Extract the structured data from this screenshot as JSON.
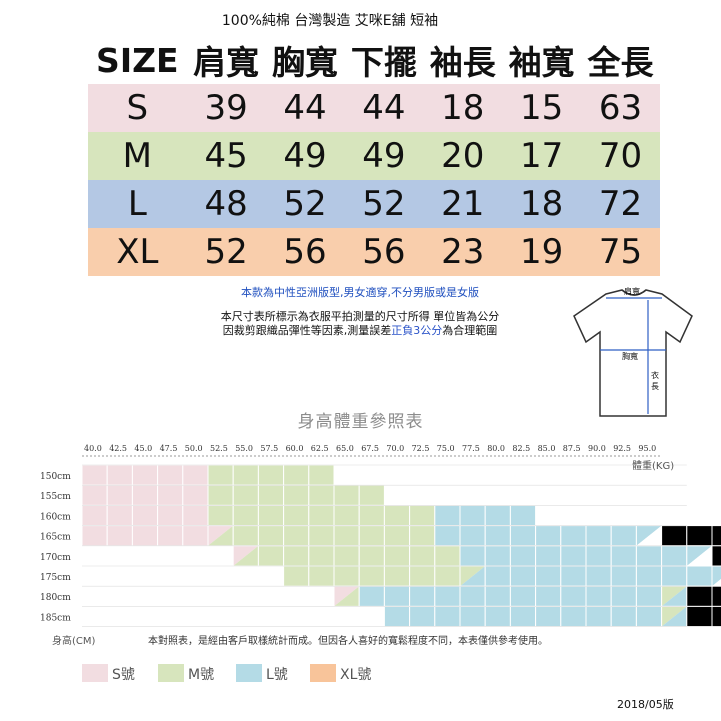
{
  "title": "100%純棉 台灣製造 艾咪E舖 短袖",
  "size_table": {
    "headers": [
      "SIZE",
      "肩寬",
      "胸寬",
      "下擺",
      "袖長",
      "袖寬",
      "全長"
    ],
    "rows": [
      {
        "size": "S",
        "values": [
          "39",
          "44",
          "44",
          "18",
          "15",
          "63"
        ],
        "color": "#f2dde1"
      },
      {
        "size": "M",
        "values": [
          "45",
          "49",
          "49",
          "20",
          "17",
          "70"
        ],
        "color": "#d7e5bd"
      },
      {
        "size": "L",
        "values": [
          "48",
          "52",
          "52",
          "21",
          "18",
          "72"
        ],
        "color": "#b4c8e4"
      },
      {
        "size": "XL",
        "values": [
          "52",
          "56",
          "56",
          "23",
          "19",
          "75"
        ],
        "color": "#f9ceac"
      }
    ]
  },
  "notes": {
    "unisex": "本款為中性亞洲版型,男女適穿,不分男版或是女版",
    "measure_line1": "本尺寸表所標示為衣服平拍測量的尺寸所得 單位皆為公分",
    "measure_line2_a": "因裁剪跟織品彈性等因素,測量誤差",
    "measure_line2_hl": "正負3公分",
    "measure_line2_b": "為合理範圍"
  },
  "shirt_diagram": {
    "shoulder_label": "肩寬",
    "chest_label": "胸寬",
    "length_label": "衣長"
  },
  "chart_title": "身高體重參照表",
  "chart_data": {
    "type": "heatmap",
    "x_ticks": [
      "40.0",
      "42.5",
      "45.0",
      "47.5",
      "50.0",
      "52.5",
      "55.0",
      "57.5",
      "60.0",
      "62.5",
      "65.0",
      "67.5",
      "70.0",
      "72.5",
      "75.0",
      "77.5",
      "80.0",
      "82.5",
      "85.0",
      "87.5",
      "90.0",
      "92.5",
      "95.0"
    ],
    "y_ticks": [
      "150cm",
      "155cm",
      "160cm",
      "165cm",
      "170cm",
      "175cm",
      "180cm",
      "185cm"
    ],
    "xlabel": "體重(KG)",
    "ylabel": "身高(CM)",
    "legend": [
      {
        "code": "S",
        "label": "S號",
        "color": "#f2dde1"
      },
      {
        "code": "M",
        "label": "M號",
        "color": "#d7e5bd"
      },
      {
        "code": "L",
        "label": "L號",
        "color": "#b4dbe6"
      },
      {
        "code": "XL",
        "label": "XL號",
        "color": "#f8c49a"
      }
    ],
    "cells": [
      "SSSSSMMMMM............",
      "SSSSSMMMMMMM..........",
      "SSSSSMMMMMMMMMLLLL....",
      "SSSSSsMMMMMMMMLLLLLLLLxXXXX",
      "......sMMMMMMMMLLLLLLLLLxXXXX",
      "........MMMMMMMlLLLLLLLLLxXXXXXXX",
      "..........mLLLLLLLLLLLLlXXXXXXXXX",
      "............LLLLLLLLLLLlXXXXXXXXX"
    ]
  },
  "footnote": "本對照表，是經由客戶取樣統計而成。但因各人喜好的寬鬆程度不同，本表僅供參考使用。",
  "date": "2018/05版"
}
